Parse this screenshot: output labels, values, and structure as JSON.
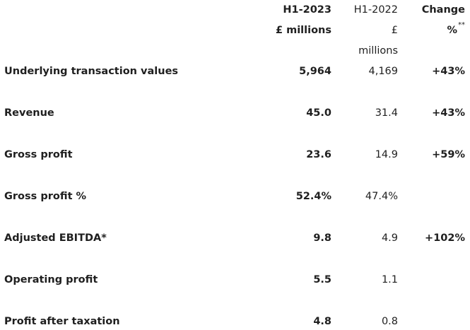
{
  "header": {
    "col1_line1": "H1-2023",
    "col1_line2": "£ millions",
    "col2_line1": "H1-2022",
    "col2_line2": "£",
    "col2_line3": "millions",
    "col3_line1": "Change",
    "col3_line2": "%",
    "col3_sup": "**"
  },
  "rows": [
    {
      "label": "Underlying transaction values",
      "h1_2023": "5,964",
      "h1_2022": "4,169",
      "change": "+43%"
    },
    {
      "label": "Revenue",
      "h1_2023": "45.0",
      "h1_2022": "31.4",
      "change": "+43%"
    },
    {
      "label": "Gross profit",
      "h1_2023": "23.6",
      "h1_2022": "14.9",
      "change": "+59%"
    },
    {
      "label": "Gross profit %",
      "h1_2023": "52.4%",
      "h1_2022": "47.4%",
      "change": ""
    },
    {
      "label": "Adjusted EBITDA*",
      "h1_2023": "9.8",
      "h1_2022": "4.9",
      "change": "+102%"
    },
    {
      "label": "Operating profit",
      "h1_2023": "5.5",
      "h1_2022": "1.1",
      "change": ""
    },
    {
      "label": "Profit after taxation",
      "h1_2023": "4.8",
      "h1_2022": "0.8",
      "change": ""
    }
  ]
}
